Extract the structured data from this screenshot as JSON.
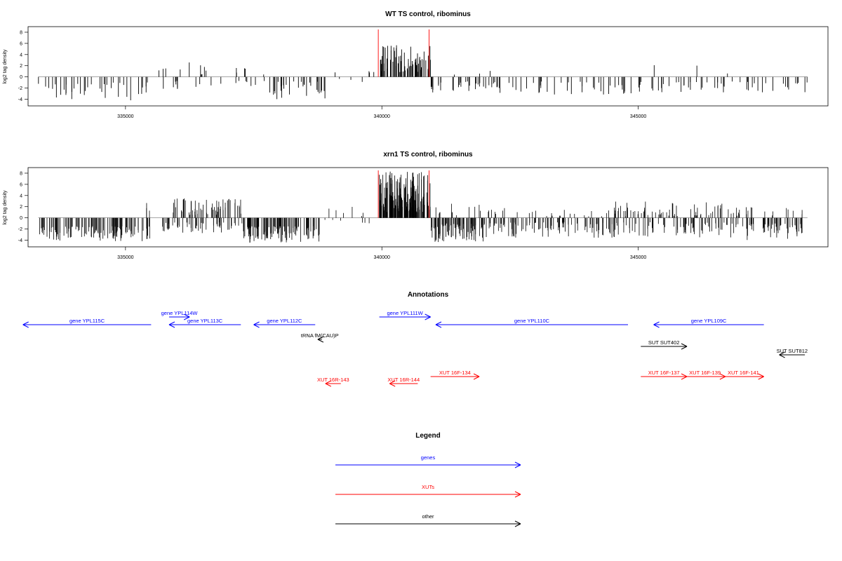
{
  "chart_data": [
    {
      "type": "bar",
      "title": "WT TS control, ribominus",
      "xlabel": "",
      "ylabel": "log2 tag density",
      "xlim": [
        333100,
        348700
      ],
      "ylim": [
        -5.2,
        9.0
      ],
      "xticks": [
        335000,
        340000,
        345000
      ],
      "xtick_labels": [
        "335000",
        "340000",
        "345000"
      ],
      "yticks": [
        -4,
        -2,
        0,
        2,
        4,
        6,
        8
      ],
      "ytick_labels": [
        "-4",
        "-2",
        "0",
        "2",
        "4",
        "6",
        "8"
      ],
      "marker_lines": [
        339930,
        340920
      ],
      "marker_color": "#ff0000",
      "bar_color": "#000000",
      "density": "sparse",
      "segments": [
        {
          "x": [
            333300,
            335500
          ],
          "sign": -1,
          "min": 1.0,
          "max": 4.6,
          "n": 38
        },
        {
          "x": [
            335500,
            336700
          ],
          "sign": 1,
          "min": 0.2,
          "max": 2.8,
          "n": 10
        },
        {
          "x": [
            335500,
            336700
          ],
          "sign": -1,
          "min": 0.6,
          "max": 2.4,
          "n": 10
        },
        {
          "x": [
            336700,
            337800
          ],
          "sign": 1,
          "min": 0.2,
          "max": 2.2,
          "n": 5
        },
        {
          "x": [
            336700,
            337800
          ],
          "sign": -1,
          "min": 0.6,
          "max": 2.0,
          "n": 8
        },
        {
          "x": [
            337800,
            338900
          ],
          "sign": -1,
          "min": 0.8,
          "max": 4.0,
          "n": 30
        },
        {
          "x": [
            338900,
            339950
          ],
          "sign": 1,
          "min": 0.3,
          "max": 1.8,
          "n": 4
        },
        {
          "x": [
            338900,
            339950
          ],
          "sign": -1,
          "min": 0.3,
          "max": 1.5,
          "n": 3
        },
        {
          "x": [
            339950,
            340950
          ],
          "sign": 1,
          "min": 0.8,
          "max": 5.8,
          "n": 75
        },
        {
          "x": [
            340950,
            342200
          ],
          "sign": -1,
          "min": 0.8,
          "max": 3.0,
          "n": 30
        },
        {
          "x": [
            341000,
            342200
          ],
          "sign": 1,
          "min": 0.3,
          "max": 1.6,
          "n": 3
        },
        {
          "x": [
            342200,
            344900
          ],
          "sign": -1,
          "min": 0.8,
          "max": 3.2,
          "n": 42
        },
        {
          "x": [
            344900,
            348300
          ],
          "sign": -1,
          "min": 0.8,
          "max": 2.8,
          "n": 50
        },
        {
          "x": [
            344900,
            348300
          ],
          "sign": 1,
          "min": 0.3,
          "max": 2.2,
          "n": 3
        }
      ]
    },
    {
      "type": "bar",
      "title": "xrn1 TS control, ribominus",
      "xlabel": "",
      "ylabel": "log2 tag density",
      "xlim": [
        333100,
        348700
      ],
      "ylim": [
        -5.2,
        9.0
      ],
      "xticks": [
        335000,
        340000,
        345000
      ],
      "xtick_labels": [
        "335000",
        "340000",
        "345000"
      ],
      "yticks": [
        -4,
        -2,
        0,
        2,
        4,
        6,
        8
      ],
      "ytick_labels": [
        "-4",
        "-2",
        "0",
        "2",
        "4",
        "6",
        "8"
      ],
      "marker_lines": [
        339930,
        340920
      ],
      "marker_color": "#ff0000",
      "bar_color": "#000000",
      "density": "dense",
      "segments": [
        {
          "x": [
            333300,
            335500
          ],
          "sign": -1,
          "min": 1.5,
          "max": 4.2,
          "n": 120
        },
        {
          "x": [
            335400,
            335700
          ],
          "sign": 1,
          "min": 0.5,
          "max": 3.0,
          "n": 3
        },
        {
          "x": [
            335900,
            337300
          ],
          "sign": 1,
          "min": 0.5,
          "max": 3.5,
          "n": 60
        },
        {
          "x": [
            335700,
            337300
          ],
          "sign": -1,
          "min": 0.8,
          "max": 2.8,
          "n": 50
        },
        {
          "x": [
            337300,
            338800
          ],
          "sign": -1,
          "min": 1.5,
          "max": 4.5,
          "n": 120
        },
        {
          "x": [
            338800,
            339950
          ],
          "sign": 1,
          "min": 0.2,
          "max": 2.0,
          "n": 6
        },
        {
          "x": [
            338800,
            339950
          ],
          "sign": -1,
          "min": 0.2,
          "max": 1.5,
          "n": 6
        },
        {
          "x": [
            339950,
            340950
          ],
          "sign": 1,
          "min": 1.0,
          "max": 8.3,
          "n": 170
        },
        {
          "x": [
            340950,
            342000
          ],
          "sign": -1,
          "min": 1.0,
          "max": 4.5,
          "n": 80
        },
        {
          "x": [
            340950,
            342000
          ],
          "sign": 1,
          "min": 0.2,
          "max": 2.8,
          "n": 12
        },
        {
          "x": [
            342000,
            344500
          ],
          "sign": -1,
          "min": 0.8,
          "max": 3.6,
          "n": 100
        },
        {
          "x": [
            342000,
            344500
          ],
          "sign": 1,
          "min": 0.2,
          "max": 2.0,
          "n": 25
        },
        {
          "x": [
            344500,
            346800
          ],
          "sign": 1,
          "min": 0.3,
          "max": 3.0,
          "n": 60
        },
        {
          "x": [
            344500,
            346800
          ],
          "sign": -1,
          "min": 0.8,
          "max": 3.5,
          "n": 70
        },
        {
          "x": [
            346800,
            348200
          ],
          "sign": -1,
          "min": 1.0,
          "max": 4.0,
          "n": 60
        },
        {
          "x": [
            346800,
            348200
          ],
          "sign": 1,
          "min": 0.3,
          "max": 2.0,
          "n": 20
        }
      ]
    }
  ],
  "annotations": {
    "title": "Annotations",
    "items": [
      {
        "label": "gene YPL115C",
        "category": "genes",
        "strand": "-",
        "start": 333000,
        "end": 335500,
        "row": 0
      },
      {
        "label": "gene YPL114W",
        "category": "genes",
        "strand": "+",
        "start": 335850,
        "end": 336250,
        "row": -1
      },
      {
        "label": "gene YPL113C",
        "category": "genes",
        "strand": "-",
        "start": 335850,
        "end": 337250,
        "row": 0
      },
      {
        "label": "gene YPL112C",
        "category": "genes",
        "strand": "-",
        "start": 337500,
        "end": 338700,
        "row": 0
      },
      {
        "label": "gene YPL111W",
        "category": "genes",
        "strand": "+",
        "start": 339950,
        "end": 340950,
        "row": -1
      },
      {
        "label": "gene YPL110C",
        "category": "genes",
        "strand": "-",
        "start": 341050,
        "end": 344800,
        "row": 0
      },
      {
        "label": "gene YPL109C",
        "category": "genes",
        "strand": "-",
        "start": 345300,
        "end": 347450,
        "row": 0
      },
      {
        "label": "tRNA fM(CAU)P",
        "category": "other",
        "strand": "-",
        "start": 338750,
        "end": 338830,
        "row": 1
      },
      {
        "label": "SUT SUT402",
        "category": "other",
        "strand": "+",
        "start": 345050,
        "end": 345950,
        "row": 2
      },
      {
        "label": "SUT SUT812",
        "category": "other",
        "strand": "-",
        "start": 347750,
        "end": 348250,
        "row": 3
      },
      {
        "label": "XUT 16R-143",
        "category": "XUTs",
        "strand": "-",
        "start": 338900,
        "end": 339200,
        "row": 5
      },
      {
        "label": "XUT 16R-144",
        "category": "XUTs",
        "strand": "-",
        "start": 340150,
        "end": 340700,
        "row": 5
      },
      {
        "label": "XUT 16F-134",
        "category": "XUTs",
        "strand": "+",
        "start": 340950,
        "end": 341900,
        "row": 4
      },
      {
        "label": "XUT 16F-137",
        "category": "XUTs",
        "strand": "+",
        "start": 345050,
        "end": 345950,
        "row": 4
      },
      {
        "label": "XUT 16F-139",
        "category": "XUTs",
        "strand": "+",
        "start": 345900,
        "end": 346700,
        "row": 4
      },
      {
        "label": "XUT 16F-141",
        "category": "XUTs",
        "strand": "+",
        "start": 346650,
        "end": 347450,
        "row": 4
      }
    ]
  },
  "legend": {
    "title": "Legend",
    "entries": [
      {
        "label": "genes",
        "color": "#0000ff"
      },
      {
        "label": "XUTs",
        "color": "#ff0000"
      },
      {
        "label": "other",
        "color": "#000000"
      }
    ]
  },
  "colors": {
    "genes": "#0000ff",
    "XUTs": "#ff0000",
    "other": "#000000",
    "axis": "#000000",
    "baseline": "#888888"
  }
}
